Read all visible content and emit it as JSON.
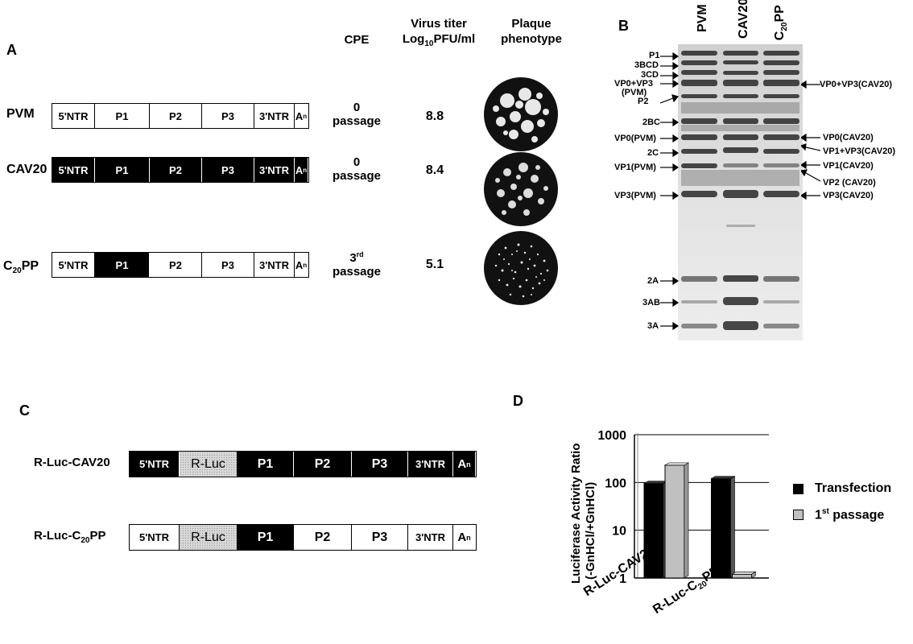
{
  "panel_a": {
    "letter": "A",
    "headers": {
      "cpe": "CPE",
      "titer_line1": "Virus titer",
      "titer_line2_pre": "Log",
      "titer_line2_sub": "10",
      "titer_line2_post": "PFU/ml",
      "plaque_line1": "Plaque",
      "plaque_line2": "phenotype"
    },
    "rows": [
      {
        "name": "PVM",
        "segments": [
          "5'NTR",
          "P1",
          "P2",
          "P3",
          "3'NTR",
          "A"
        ],
        "cpe_top": "0",
        "cpe_bottom": "passage",
        "titer": "8.8"
      },
      {
        "name": "CAV20",
        "segments": [
          "5'NTR",
          "P1",
          "P2",
          "P3",
          "3'NTR",
          "A"
        ],
        "cpe_top": "0",
        "cpe_bottom": "passage",
        "titer": "8.4"
      },
      {
        "name_pre": "C",
        "name_sub": "20",
        "name_post": "PP",
        "segments": [
          "5'NTR",
          "P1",
          "P2",
          "P3",
          "3'NTR",
          "A"
        ],
        "cpe_top_pre": "3",
        "cpe_top_sup": "rd",
        "cpe_bottom": "passage",
        "titer": "5.1"
      }
    ],
    "an_sub": "n"
  },
  "panel_b": {
    "letter": "B",
    "lanes": {
      "l1": "PVM",
      "l2": "CAV20",
      "l3_pre": "C",
      "l3_sub": "20",
      "l3_post": "PP"
    },
    "left_labels": [
      "P1",
      "3BCD",
      "3CD",
      "VP0+VP3",
      "(PVM)",
      "P2",
      "2BC",
      "VP0(PVM)",
      "2C",
      "VP1(PVM)",
      "VP3(PVM)",
      "2A",
      "3AB",
      "3A"
    ],
    "right_labels": [
      "VP0+VP3(CAV20)",
      "VP0(CAV20)",
      "VP1+VP3(CAV20)",
      "VP1(CAV20)",
      "VP2 (CAV20)",
      "VP3(CAV20)"
    ]
  },
  "panel_c": {
    "letter": "C",
    "rows": [
      {
        "name": "R-Luc-CAV20",
        "segments": [
          "5'NTR",
          "R-Luc",
          "P1",
          "P2",
          "P3",
          "3'NTR",
          "A"
        ]
      },
      {
        "name_pre": "R-Luc-C",
        "name_sub": "20",
        "name_post": "PP",
        "segments": [
          "5'NTR",
          "R-Luc",
          "P1",
          "P2",
          "P3",
          "3'NTR",
          "A"
        ]
      }
    ],
    "an_sub": "n"
  },
  "panel_d": {
    "letter": "D",
    "legend_1": "Transfection",
    "legend_2_pre": "1",
    "legend_2_sup": "st",
    "legend_2_post": " passage",
    "x_label_1": "R-Luc-CAV20",
    "x_label_2_pre": "R-Luc-C",
    "x_label_2_sub": "20",
    "x_label_2_post": "PP"
  },
  "chart_data": {
    "type": "bar",
    "log_scale": true,
    "ylabel": "Luciferase Activity Ratio (-GnHCl/+GnHCl)",
    "ylim": [
      1,
      1000
    ],
    "y_ticks": [
      "1",
      "10",
      "100",
      "1000"
    ],
    "categories": [
      "R-Luc-CAV20",
      "R-Luc-C20PP"
    ],
    "series": [
      {
        "name": "Transfection",
        "color": "#000000",
        "values": [
          95,
          120
        ]
      },
      {
        "name": "1st passage",
        "color": "#c0c0c0",
        "values": [
          230,
          1.2
        ]
      }
    ],
    "legend_position": "right",
    "grid": true
  }
}
